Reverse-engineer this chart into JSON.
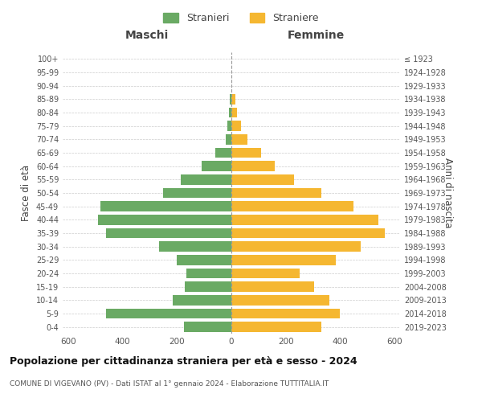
{
  "age_groups": [
    "0-4",
    "5-9",
    "10-14",
    "15-19",
    "20-24",
    "25-29",
    "30-34",
    "35-39",
    "40-44",
    "45-49",
    "50-54",
    "55-59",
    "60-64",
    "65-69",
    "70-74",
    "75-79",
    "80-84",
    "85-89",
    "90-94",
    "95-99",
    "100+"
  ],
  "birth_years": [
    "2019-2023",
    "2014-2018",
    "2009-2013",
    "2004-2008",
    "1999-2003",
    "1994-1998",
    "1989-1993",
    "1984-1988",
    "1979-1983",
    "1974-1978",
    "1969-1973",
    "1964-1968",
    "1959-1963",
    "1954-1958",
    "1949-1953",
    "1944-1948",
    "1939-1943",
    "1934-1938",
    "1929-1933",
    "1924-1928",
    "≤ 1923"
  ],
  "maschi": [
    175,
    460,
    215,
    170,
    165,
    200,
    265,
    460,
    490,
    480,
    250,
    185,
    110,
    60,
    20,
    15,
    10,
    5,
    0,
    0,
    0
  ],
  "femmine": [
    330,
    400,
    360,
    305,
    250,
    385,
    475,
    565,
    540,
    450,
    330,
    230,
    160,
    110,
    60,
    35,
    20,
    15,
    0,
    0,
    0
  ],
  "color_maschi": "#6aaa64",
  "color_femmine": "#f5b731",
  "title": "Popolazione per cittadinanza straniera per età e sesso - 2024",
  "subtitle": "COMUNE DI VIGEVANO (PV) - Dati ISTAT al 1° gennaio 2024 - Elaborazione TUTTITALIA.IT",
  "xlabel_left": "Maschi",
  "xlabel_right": "Femmine",
  "ylabel_left": "Fasce di età",
  "ylabel_right": "Anni di nascita",
  "xlim": 620,
  "legend_stranieri": "Stranieri",
  "legend_straniere": "Straniere",
  "bg_color": "#ffffff",
  "grid_color": "#cccccc",
  "tick_color": "#555555"
}
